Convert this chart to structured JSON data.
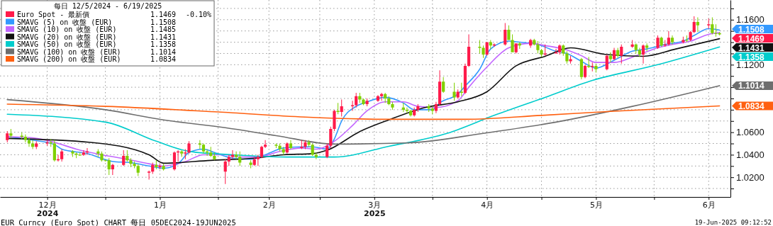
{
  "chart_data": {
    "type": "candlestick",
    "legend_title": "每日 12/5/2024 - 6/19/2025",
    "x": [
      "2024-12-05",
      "2024-12-06",
      "2024-12-09",
      "2024-12-10",
      "2024-12-11",
      "2024-12-12",
      "2024-12-13",
      "2024-12-16",
      "2024-12-17",
      "2024-12-18",
      "2024-12-19",
      "2024-12-20",
      "2024-12-23",
      "2024-12-24",
      "2024-12-25",
      "2024-12-26",
      "2024-12-27",
      "2024-12-30",
      "2024-12-31",
      "2025-01-01",
      "2025-01-02",
      "2025-01-03",
      "2025-01-06",
      "2025-01-07",
      "2025-01-08",
      "2025-01-09",
      "2025-01-10",
      "2025-01-13",
      "2025-01-14",
      "2025-01-15",
      "2025-01-16",
      "2025-01-17",
      "2025-01-20",
      "2025-01-21",
      "2025-01-22",
      "2025-01-23",
      "2025-01-24",
      "2025-01-27",
      "2025-01-28",
      "2025-01-29",
      "2025-01-30",
      "2025-01-31",
      "2025-02-03",
      "2025-02-04",
      "2025-02-05",
      "2025-02-06",
      "2025-02-07",
      "2025-02-10",
      "2025-02-11",
      "2025-02-12",
      "2025-02-13",
      "2025-02-14",
      "2025-02-17",
      "2025-02-18",
      "2025-02-19",
      "2025-02-20",
      "2025-02-21",
      "2025-02-24",
      "2025-02-25",
      "2025-02-26",
      "2025-02-27",
      "2025-02-28",
      "2025-03-03",
      "2025-03-04",
      "2025-03-05",
      "2025-03-06",
      "2025-03-07",
      "2025-03-10",
      "2025-03-11",
      "2025-03-12",
      "2025-03-13",
      "2025-03-14",
      "2025-03-17",
      "2025-03-18",
      "2025-03-19",
      "2025-03-20",
      "2025-03-21",
      "2025-03-24",
      "2025-03-25",
      "2025-03-26",
      "2025-03-27",
      "2025-03-28",
      "2025-03-31",
      "2025-04-01",
      "2025-04-02",
      "2025-04-03",
      "2025-04-04",
      "2025-04-07",
      "2025-04-08",
      "2025-04-09",
      "2025-04-10",
      "2025-04-11",
      "2025-04-14",
      "2025-04-15",
      "2025-04-16",
      "2025-04-17",
      "2025-04-18",
      "2025-04-21",
      "2025-04-22",
      "2025-04-23",
      "2025-04-24",
      "2025-04-25",
      "2025-04-28",
      "2025-04-29",
      "2025-04-30",
      "2025-05-01",
      "2025-05-02",
      "2025-05-05",
      "2025-05-06",
      "2025-05-07",
      "2025-05-08",
      "2025-05-09",
      "2025-05-12",
      "2025-05-13",
      "2025-05-14",
      "2025-05-15",
      "2025-05-16",
      "2025-05-19",
      "2025-05-20",
      "2025-05-21",
      "2025-05-22",
      "2025-05-23",
      "2025-05-26",
      "2025-05-27",
      "2025-05-28",
      "2025-05-29",
      "2025-05-30",
      "2025-06-02",
      "2025-06-03",
      "2025-06-04",
      "2025-06-05",
      "2025-06-06",
      "2025-06-09",
      "2025-06-10",
      "2025-06-11",
      "2025-06-12",
      "2025-06-13",
      "2025-06-16",
      "2025-06-17",
      "2025-06-18",
      "2025-06-19"
    ],
    "series": [
      {
        "name": "Euro Spot - 最新價",
        "color": "#ff1a4a",
        "colors": [
          "#ff1a4a",
          "#7fd000",
          "#7fd000",
          "#7fd000",
          "#7fd000",
          "#7fd000",
          "#ff1a4a",
          "#ff1a4a",
          "#7fd000",
          "#7fd000",
          "#ff1a4a",
          "#ff1a4a",
          "#7fd000",
          "#7fd000",
          "#7fd000",
          "#ff1a4a",
          "#ff1a4a",
          "#7fd000",
          "#7fd000",
          "#7fd000",
          "#7fd000",
          "#ff1a4a",
          "#ff1a4a",
          "#7fd000",
          "#7fd000",
          "#7fd000",
          "#7fd000",
          "#ff1a4a",
          "#ff1a4a",
          "#7fd000",
          "#ff1a4a",
          "#7fd000",
          "#ff1a4a",
          "#ff1a4a",
          "#7fd000",
          "#ff1a4a",
          "#ff1a4a",
          "#7fd000",
          "#7fd000",
          "#7fd000",
          "#7fd000",
          "#7fd000",
          "#ff1a4a",
          "#ff1a4a",
          "#ff1a4a",
          "#7fd000",
          "#7fd000",
          "#7fd000",
          "#ff1a4a",
          "#ff1a4a",
          "#ff1a4a",
          "#ff1a4a",
          "#7fd000",
          "#7fd000",
          "#7fd000",
          "#ff1a4a",
          "#7fd000",
          "#ff1a4a",
          "#ff1a4a",
          "#7fd000",
          "#7fd000",
          "#7fd000",
          "#ff1a4a",
          "#ff1a4a",
          "#ff1a4a",
          "#7fd000",
          "#ff1a4a",
          "#ff1a4a",
          "#ff1a4a",
          "#7fd000",
          "#7fd000",
          "#ff1a4a",
          "#ff1a4a",
          "#ff1a4a",
          "#7fd000",
          "#7fd000",
          "#7fd000",
          "#7fd000",
          "#7fd000",
          "#7fd000",
          "#ff1a4a",
          "#ff1a4a",
          "#7fd000",
          "#7fd000",
          "#ff1a4a",
          "#ff1a4a",
          "#7fd000",
          "#7fd000",
          "#ff1a4a",
          "#7fd000",
          "#ff1a4a",
          "#ff1a4a",
          "#7fd000",
          "#7fd000",
          "#ff1a4a",
          "#7fd000",
          "#ff1a4a",
          "#ff1a4a",
          "#7fd000",
          "#7fd000",
          "#ff1a4a",
          "#7fd000",
          "#ff1a4a",
          "#7fd000",
          "#7fd000",
          "#7fd000",
          "#ff1a4a",
          "#ff1a4a",
          "#ff1a4a",
          "#7fd000",
          "#7fd000",
          "#ff1a4a",
          "#7fd000",
          "#ff1a4a",
          "#7fd000",
          "#ff1a4a",
          "#7fd000",
          "#ff1a4a",
          "#7fd000",
          "#ff1a4a",
          "#7fd000",
          "#ff1a4a",
          "#ff1a4a",
          "#7fd000",
          "#7fd000",
          "#ff1a4a",
          "#7fd000",
          "#ff1a4a",
          "#7fd000",
          "#ff1a4a",
          "#ff1a4a",
          "#7fd000",
          "#ff1a4a",
          "#7fd000",
          "#ff1a4a",
          "#ff1a4a",
          "#7fd000",
          "#ff1a4a",
          "#7fd000",
          "#7fd000",
          "#7fd000"
        ],
        "ohlc": [
          [
            1.053,
            1.061,
            1.051,
            1.059
          ],
          [
            1.059,
            1.063,
            1.055,
            1.057
          ],
          [
            1.057,
            1.06,
            1.054,
            1.056
          ],
          [
            1.056,
            1.058,
            1.051,
            1.053
          ],
          [
            1.053,
            1.055,
            1.047,
            1.05
          ],
          [
            1.05,
            1.053,
            1.045,
            1.047
          ],
          [
            1.047,
            1.052,
            1.045,
            1.05
          ],
          [
            1.05,
            1.053,
            1.048,
            1.051
          ],
          [
            1.051,
            1.054,
            1.047,
            1.05
          ],
          [
            1.05,
            1.053,
            1.034,
            1.035
          ],
          [
            1.035,
            1.04,
            1.034,
            1.036
          ],
          [
            1.036,
            1.045,
            1.034,
            1.043
          ],
          [
            1.043,
            1.044,
            1.038,
            1.041
          ],
          [
            1.041,
            1.042,
            1.037,
            1.04
          ],
          [
            1.04,
            1.042,
            1.039,
            1.04
          ],
          [
            1.04,
            1.044,
            1.039,
            1.042
          ],
          [
            1.042,
            1.046,
            1.04,
            1.043
          ],
          [
            1.043,
            1.045,
            1.038,
            1.041
          ],
          [
            1.041,
            1.043,
            1.034,
            1.035
          ],
          [
            1.035,
            1.036,
            1.034,
            1.035
          ],
          [
            1.035,
            1.037,
            1.022,
            1.027
          ],
          [
            1.027,
            1.032,
            1.022,
            1.031
          ],
          [
            1.031,
            1.044,
            1.03,
            1.039
          ],
          [
            1.039,
            1.044,
            1.034,
            1.035
          ],
          [
            1.035,
            1.037,
            1.029,
            1.032
          ],
          [
            1.032,
            1.034,
            1.028,
            1.03
          ],
          [
            1.03,
            1.032,
            1.021,
            1.024
          ],
          [
            1.024,
            1.026,
            1.018,
            1.025
          ],
          [
            1.025,
            1.033,
            1.023,
            1.031
          ],
          [
            1.031,
            1.035,
            1.027,
            1.029
          ],
          [
            1.029,
            1.032,
            1.027,
            1.03
          ],
          [
            1.03,
            1.032,
            1.026,
            1.027
          ],
          [
            1.027,
            1.043,
            1.026,
            1.042
          ],
          [
            1.042,
            1.044,
            1.034,
            1.043
          ],
          [
            1.043,
            1.044,
            1.038,
            1.041
          ],
          [
            1.041,
            1.045,
            1.036,
            1.042
          ],
          [
            1.042,
            1.052,
            1.041,
            1.05
          ],
          [
            1.05,
            1.053,
            1.045,
            1.049
          ],
          [
            1.049,
            1.05,
            1.041,
            1.043
          ],
          [
            1.043,
            1.045,
            1.039,
            1.042
          ],
          [
            1.042,
            1.047,
            1.038,
            1.039
          ],
          [
            1.039,
            1.042,
            1.035,
            1.036
          ],
          [
            1.025,
            1.036,
            1.014,
            1.034
          ],
          [
            1.034,
            1.04,
            1.03,
            1.038
          ],
          [
            1.038,
            1.044,
            1.036,
            1.04
          ],
          [
            1.04,
            1.043,
            1.036,
            1.038
          ],
          [
            1.038,
            1.043,
            1.03,
            1.033
          ],
          [
            1.033,
            1.035,
            1.028,
            1.031
          ],
          [
            1.031,
            1.038,
            1.03,
            1.036
          ],
          [
            1.036,
            1.04,
            1.03,
            1.038
          ],
          [
            1.038,
            1.048,
            1.037,
            1.047
          ],
          [
            1.047,
            1.053,
            1.046,
            1.049
          ],
          [
            1.049,
            1.05,
            1.046,
            1.048
          ],
          [
            1.048,
            1.05,
            1.043,
            1.045
          ],
          [
            1.045,
            1.047,
            1.04,
            1.042
          ],
          [
            1.042,
            1.051,
            1.041,
            1.05
          ],
          [
            1.05,
            1.053,
            1.045,
            1.046
          ],
          [
            1.046,
            1.053,
            1.045,
            1.047
          ],
          [
            1.047,
            1.053,
            1.045,
            1.051
          ],
          [
            1.051,
            1.053,
            1.047,
            1.049
          ],
          [
            1.049,
            1.05,
            1.039,
            1.04
          ],
          [
            1.04,
            1.042,
            1.036,
            1.038
          ],
          [
            1.038,
            1.05,
            1.037,
            1.048
          ],
          [
            1.048,
            1.065,
            1.046,
            1.063
          ],
          [
            1.063,
            1.08,
            1.061,
            1.079
          ],
          [
            1.079,
            1.086,
            1.076,
            1.078
          ],
          [
            1.078,
            1.089,
            1.074,
            1.083
          ],
          [
            1.083,
            1.088,
            1.079,
            1.084
          ],
          [
            1.084,
            1.095,
            1.082,
            1.092
          ],
          [
            1.092,
            1.095,
            1.086,
            1.089
          ],
          [
            1.089,
            1.09,
            1.084,
            1.085
          ],
          [
            1.085,
            1.09,
            1.083,
            1.088
          ],
          [
            1.088,
            1.093,
            1.087,
            1.092
          ],
          [
            1.092,
            1.095,
            1.088,
            1.094
          ],
          [
            1.094,
            1.095,
            1.086,
            1.09
          ],
          [
            1.09,
            1.092,
            1.084,
            1.085
          ],
          [
            1.085,
            1.087,
            1.08,
            1.082
          ],
          [
            1.082,
            1.086,
            1.078,
            1.08
          ],
          [
            1.08,
            1.082,
            1.077,
            1.079
          ],
          [
            1.079,
            1.08,
            1.074,
            1.075
          ],
          [
            1.075,
            1.082,
            1.074,
            1.08
          ],
          [
            1.08,
            1.085,
            1.078,
            1.083
          ],
          [
            1.083,
            1.085,
            1.078,
            1.081
          ],
          [
            1.081,
            1.083,
            1.076,
            1.079
          ],
          [
            1.079,
            1.087,
            1.077,
            1.085
          ],
          [
            1.085,
            1.115,
            1.084,
            1.105
          ],
          [
            1.105,
            1.109,
            1.095,
            1.096
          ],
          [
            1.096,
            1.104,
            1.088,
            1.091
          ],
          [
            1.091,
            1.098,
            1.09,
            1.096
          ],
          [
            1.096,
            1.104,
            1.092,
            1.095
          ],
          [
            1.095,
            1.121,
            1.094,
            1.119
          ],
          [
            1.119,
            1.147,
            1.118,
            1.136
          ],
          [
            1.136,
            1.142,
            1.13,
            1.135
          ],
          [
            1.135,
            1.137,
            1.126,
            1.129
          ],
          [
            1.129,
            1.14,
            1.128,
            1.14
          ],
          [
            1.14,
            1.142,
            1.134,
            1.137
          ],
          [
            1.137,
            1.139,
            1.136,
            1.138
          ],
          [
            1.138,
            1.157,
            1.137,
            1.151
          ],
          [
            1.151,
            1.155,
            1.142,
            1.142
          ],
          [
            1.142,
            1.147,
            1.131,
            1.131
          ],
          [
            1.131,
            1.139,
            1.13,
            1.139
          ],
          [
            1.139,
            1.14,
            1.134,
            1.137
          ],
          [
            1.137,
            1.143,
            1.135,
            1.142
          ],
          [
            1.142,
            1.143,
            1.137,
            1.138
          ],
          [
            1.138,
            1.141,
            1.13,
            1.133
          ],
          [
            1.133,
            1.134,
            1.127,
            1.129
          ],
          [
            1.129,
            1.138,
            1.128,
            1.13
          ],
          [
            1.13,
            1.134,
            1.13,
            1.131
          ],
          [
            1.131,
            1.138,
            1.129,
            1.137
          ],
          [
            1.137,
            1.138,
            1.128,
            1.13
          ],
          [
            1.13,
            1.132,
            1.121,
            1.123
          ],
          [
            1.123,
            1.128,
            1.121,
            1.125
          ],
          [
            1.125,
            1.126,
            1.107,
            1.109
          ],
          [
            1.109,
            1.12,
            1.108,
            1.119
          ],
          [
            1.119,
            1.127,
            1.117,
            1.118
          ],
          [
            1.118,
            1.122,
            1.114,
            1.119
          ],
          [
            1.119,
            1.121,
            1.113,
            1.116
          ],
          [
            1.116,
            1.129,
            1.115,
            1.128
          ],
          [
            1.128,
            1.131,
            1.122,
            1.125
          ],
          [
            1.125,
            1.135,
            1.124,
            1.133
          ],
          [
            1.133,
            1.135,
            1.126,
            1.128
          ],
          [
            1.128,
            1.138,
            1.121,
            1.136
          ],
          [
            1.136,
            1.142,
            1.135,
            1.138
          ],
          [
            1.138,
            1.139,
            1.13,
            1.133
          ],
          [
            1.133,
            1.135,
            1.127,
            1.129
          ],
          [
            1.129,
            1.138,
            1.121,
            1.137
          ],
          [
            1.137,
            1.139,
            1.132,
            1.135
          ],
          [
            1.135,
            1.146,
            1.134,
            1.144
          ],
          [
            1.144,
            1.145,
            1.136,
            1.137
          ],
          [
            1.137,
            1.142,
            1.136,
            1.138
          ],
          [
            1.138,
            1.15,
            1.137,
            1.144
          ],
          [
            1.144,
            1.146,
            1.138,
            1.14
          ],
          [
            1.14,
            1.145,
            1.139,
            1.142
          ],
          [
            1.142,
            1.146,
            1.14,
            1.142
          ],
          [
            1.142,
            1.15,
            1.141,
            1.149
          ],
          [
            1.149,
            1.163,
            1.148,
            1.158
          ],
          [
            1.158,
            1.162,
            1.149,
            1.155
          ],
          [
            1.155,
            1.161,
            1.152,
            1.156
          ],
          [
            1.156,
            1.162,
            1.147,
            1.148
          ],
          [
            1.148,
            1.156,
            1.145,
            1.148
          ],
          [
            1.148,
            1.149,
            1.146,
            1.1469
          ]
        ]
      },
      {
        "name": "SMAVG (5) on 收盤 (EUR)",
        "type": "line",
        "color": "#3399ff",
        "x": [
          "2024-12-05",
          "2024-12-12",
          "2024-12-18",
          "2024-12-20",
          "2024-12-27",
          "2025-01-03",
          "2025-01-08",
          "2025-01-13",
          "2025-01-17",
          "2025-01-21",
          "2025-01-24",
          "2025-01-28",
          "2025-01-31",
          "2025-02-05",
          "2025-02-10",
          "2025-02-14",
          "2025-02-19",
          "2025-02-24",
          "2025-02-27",
          "2025-03-03",
          "2025-03-05",
          "2025-03-07",
          "2025-03-11",
          "2025-03-14",
          "2025-03-19",
          "2025-03-24",
          "2025-03-27",
          "2025-04-01",
          "2025-04-03",
          "2025-04-08",
          "2025-04-10",
          "2025-04-14",
          "2025-04-17",
          "2025-04-22",
          "2025-04-25",
          "2025-04-30",
          "2025-05-05",
          "2025-05-08",
          "2025-05-12",
          "2025-05-16",
          "2025-05-21",
          "2025-05-26",
          "2025-05-30",
          "2025-06-04",
          "2025-06-09",
          "2025-06-12",
          "2025-06-16",
          "2025-06-19"
        ],
        "values": [
          1.056,
          1.053,
          1.049,
          1.045,
          1.041,
          1.034,
          1.033,
          1.03,
          1.028,
          1.032,
          1.042,
          1.045,
          1.042,
          1.037,
          1.036,
          1.04,
          1.046,
          1.047,
          1.047,
          1.045,
          1.054,
          1.07,
          1.083,
          1.087,
          1.091,
          1.086,
          1.08,
          1.08,
          1.086,
          1.094,
          1.101,
          1.116,
          1.134,
          1.141,
          1.14,
          1.138,
          1.132,
          1.13,
          1.123,
          1.117,
          1.124,
          1.132,
          1.134,
          1.138,
          1.141,
          1.146,
          1.152,
          1.1508
        ]
      },
      {
        "name": "SMAVG (10) on 收盤 (EUR)",
        "type": "line",
        "color": "#c266ff",
        "x": [
          "2024-12-05",
          "2024-12-12",
          "2024-12-18",
          "2024-12-24",
          "2024-12-31",
          "2025-01-07",
          "2025-01-13",
          "2025-01-17",
          "2025-01-23",
          "2025-01-28",
          "2025-02-03",
          "2025-02-07",
          "2025-02-12",
          "2025-02-18",
          "2025-02-24",
          "2025-02-28",
          "2025-03-05",
          "2025-03-10",
          "2025-03-14",
          "2025-03-19",
          "2025-03-24",
          "2025-03-28",
          "2025-04-02",
          "2025-04-08",
          "2025-04-11",
          "2025-04-16",
          "2025-04-22",
          "2025-04-28",
          "2025-05-02",
          "2025-05-07",
          "2025-05-12",
          "2025-05-16",
          "2025-05-21",
          "2025-05-27",
          "2025-06-02",
          "2025-06-06",
          "2025-06-11",
          "2025-06-16",
          "2025-06-19"
        ],
        "values": [
          1.056,
          1.055,
          1.051,
          1.045,
          1.04,
          1.036,
          1.032,
          1.03,
          1.034,
          1.04,
          1.04,
          1.038,
          1.038,
          1.043,
          1.046,
          1.045,
          1.052,
          1.066,
          1.079,
          1.087,
          1.087,
          1.083,
          1.082,
          1.088,
          1.1,
          1.118,
          1.135,
          1.139,
          1.137,
          1.134,
          1.128,
          1.122,
          1.122,
          1.128,
          1.135,
          1.138,
          1.141,
          1.147,
          1.1485
        ]
      },
      {
        "name": "SMAVG (20) on 收盤 (EUR)",
        "type": "line",
        "color": "#111111",
        "x": [
          "2024-12-05",
          "2024-12-28",
          "2025-01-13",
          "2025-01-17",
          "2025-01-30",
          "2025-02-11",
          "2025-02-19",
          "2025-02-27",
          "2025-03-03",
          "2025-03-12",
          "2025-03-20",
          "2025-03-30",
          "2025-04-08",
          "2025-04-16",
          "2025-04-24",
          "2025-05-02",
          "2025-05-09",
          "2025-05-19",
          "2025-05-29",
          "2025-06-07",
          "2025-06-19"
        ],
        "values": [
          1.0545,
          1.051,
          1.04,
          1.0325,
          1.035,
          1.037,
          1.04,
          1.041,
          1.044,
          1.0606,
          1.071,
          1.082,
          1.087,
          1.096,
          1.119,
          1.1275,
          1.135,
          1.129,
          1.1275,
          1.134,
          1.1431
        ]
      },
      {
        "name": "SMAVG (50) on 收盤 (EUR)",
        "type": "line",
        "color": "#00cccc",
        "x": [
          "2024-12-05",
          "2025-01-01",
          "2025-01-15",
          "2025-01-24",
          "2025-02-05",
          "2025-02-20",
          "2025-03-05",
          "2025-03-20",
          "2025-04-05",
          "2025-04-18",
          "2025-05-02",
          "2025-05-15",
          "2025-06-02",
          "2025-06-19"
        ],
        "values": [
          1.076,
          1.069,
          1.052,
          1.043,
          1.04,
          1.038,
          1.038,
          1.0475,
          1.059,
          1.075,
          1.091,
          1.106,
          1.12,
          1.1358
        ]
      },
      {
        "name": "SMAVG (100) on 收盤 (EUR)",
        "type": "line",
        "color": "#6e6e6e",
        "x": [
          "2024-12-05",
          "2025-01-01",
          "2025-01-17",
          "2025-02-03",
          "2025-02-17",
          "2025-03-05",
          "2025-03-25",
          "2025-04-15",
          "2025-05-05",
          "2025-05-26",
          "2025-06-19"
        ],
        "values": [
          1.089,
          1.08,
          1.071,
          1.064,
          1.057,
          1.0495,
          1.0505,
          1.059,
          1.069,
          1.083,
          1.1014
        ]
      },
      {
        "name": "SMAVG (200) on 收盤 (EUR)",
        "type": "line",
        "color": "#ff6010",
        "x": [
          "2024-12-05",
          "2025-01-01",
          "2025-02-01",
          "2025-02-25",
          "2025-03-20",
          "2025-04-10",
          "2025-05-01",
          "2025-05-20",
          "2025-06-19"
        ],
        "values": [
          1.085,
          1.083,
          1.078,
          1.0735,
          1.0715,
          1.0715,
          1.075,
          1.0785,
          1.0834
        ]
      }
    ],
    "xlim": [
      "2024-12-03",
      "2025-06-22"
    ],
    "xticks": [
      {
        "value": "2024-12-16",
        "label": "12月\n2024"
      },
      {
        "value": "2025-01-01",
        "label": null
      },
      {
        "value": "2025-01-16",
        "label": "1月"
      },
      {
        "value": "2025-02-01",
        "label": null
      },
      {
        "value": "2025-02-15",
        "label": "2月"
      },
      {
        "value": "2025-03-01",
        "label": null
      },
      {
        "value": "2025-03-16",
        "label": "3月\n2025"
      },
      {
        "value": "2025-04-01",
        "label": null
      },
      {
        "value": "2025-04-16",
        "label": "4月"
      },
      {
        "value": "2025-05-01",
        "label": null
      },
      {
        "value": "2025-05-16",
        "label": "5月"
      },
      {
        "value": "2025-06-01",
        "label": null
      },
      {
        "value": "2025-06-16",
        "label": "6月"
      }
    ],
    "ylim": [
      1.0025,
      1.1775
    ],
    "yticks": [
      {
        "value": 1.01,
        "label": null
      },
      {
        "value": 1.02,
        "label": "1.0200"
      },
      {
        "value": 1.03,
        "label": null
      },
      {
        "value": 1.04,
        "label": "1.0400"
      },
      {
        "value": 1.05,
        "label": null
      },
      {
        "value": 1.06,
        "label": "1.0600"
      },
      {
        "value": 1.07,
        "label": null
      },
      {
        "value": 1.08,
        "label": null
      },
      {
        "value": 1.09,
        "label": null
      },
      {
        "value": 1.1,
        "label": null
      },
      {
        "value": 1.11,
        "label": null
      },
      {
        "value": 1.12,
        "label": "1.1200"
      },
      {
        "value": 1.13,
        "label": null
      },
      {
        "value": 1.14,
        "label": null
      },
      {
        "value": 1.15,
        "label": null
      },
      {
        "value": 1.16,
        "label": "1.1600"
      },
      {
        "value": 1.17,
        "label": null
      }
    ],
    "grid": true,
    "legend": "top left",
    "annotations": [
      "1.1469",
      "1.1508",
      "1.1485",
      "1.1431",
      "1.1358",
      "1.1014",
      "1.0834",
      "-0.10%",
      "EUR Curncy (Euro Spot) CHART  每日 05DEC2024-19JUN2025",
      "19-Jun-2025 09:12:52",
      {
        "text": "1.1508",
        "x": "2025-06-19",
        "y": 1.1508
      },
      {
        "text": "1.1469",
        "x": "2025-06-19",
        "y": 1.1469
      },
      {
        "text": "1.1431",
        "x": "2025-06-19",
        "y": 1.1431
      },
      {
        "text": "1.1358",
        "x": "2025-06-19",
        "y": 1.1358
      },
      {
        "text": "1.1014",
        "x": "2025-06-19",
        "y": 1.1014
      },
      {
        "text": "1.0834",
        "x": "2025-06-19",
        "y": 1.0834
      }
    ]
  }
}
